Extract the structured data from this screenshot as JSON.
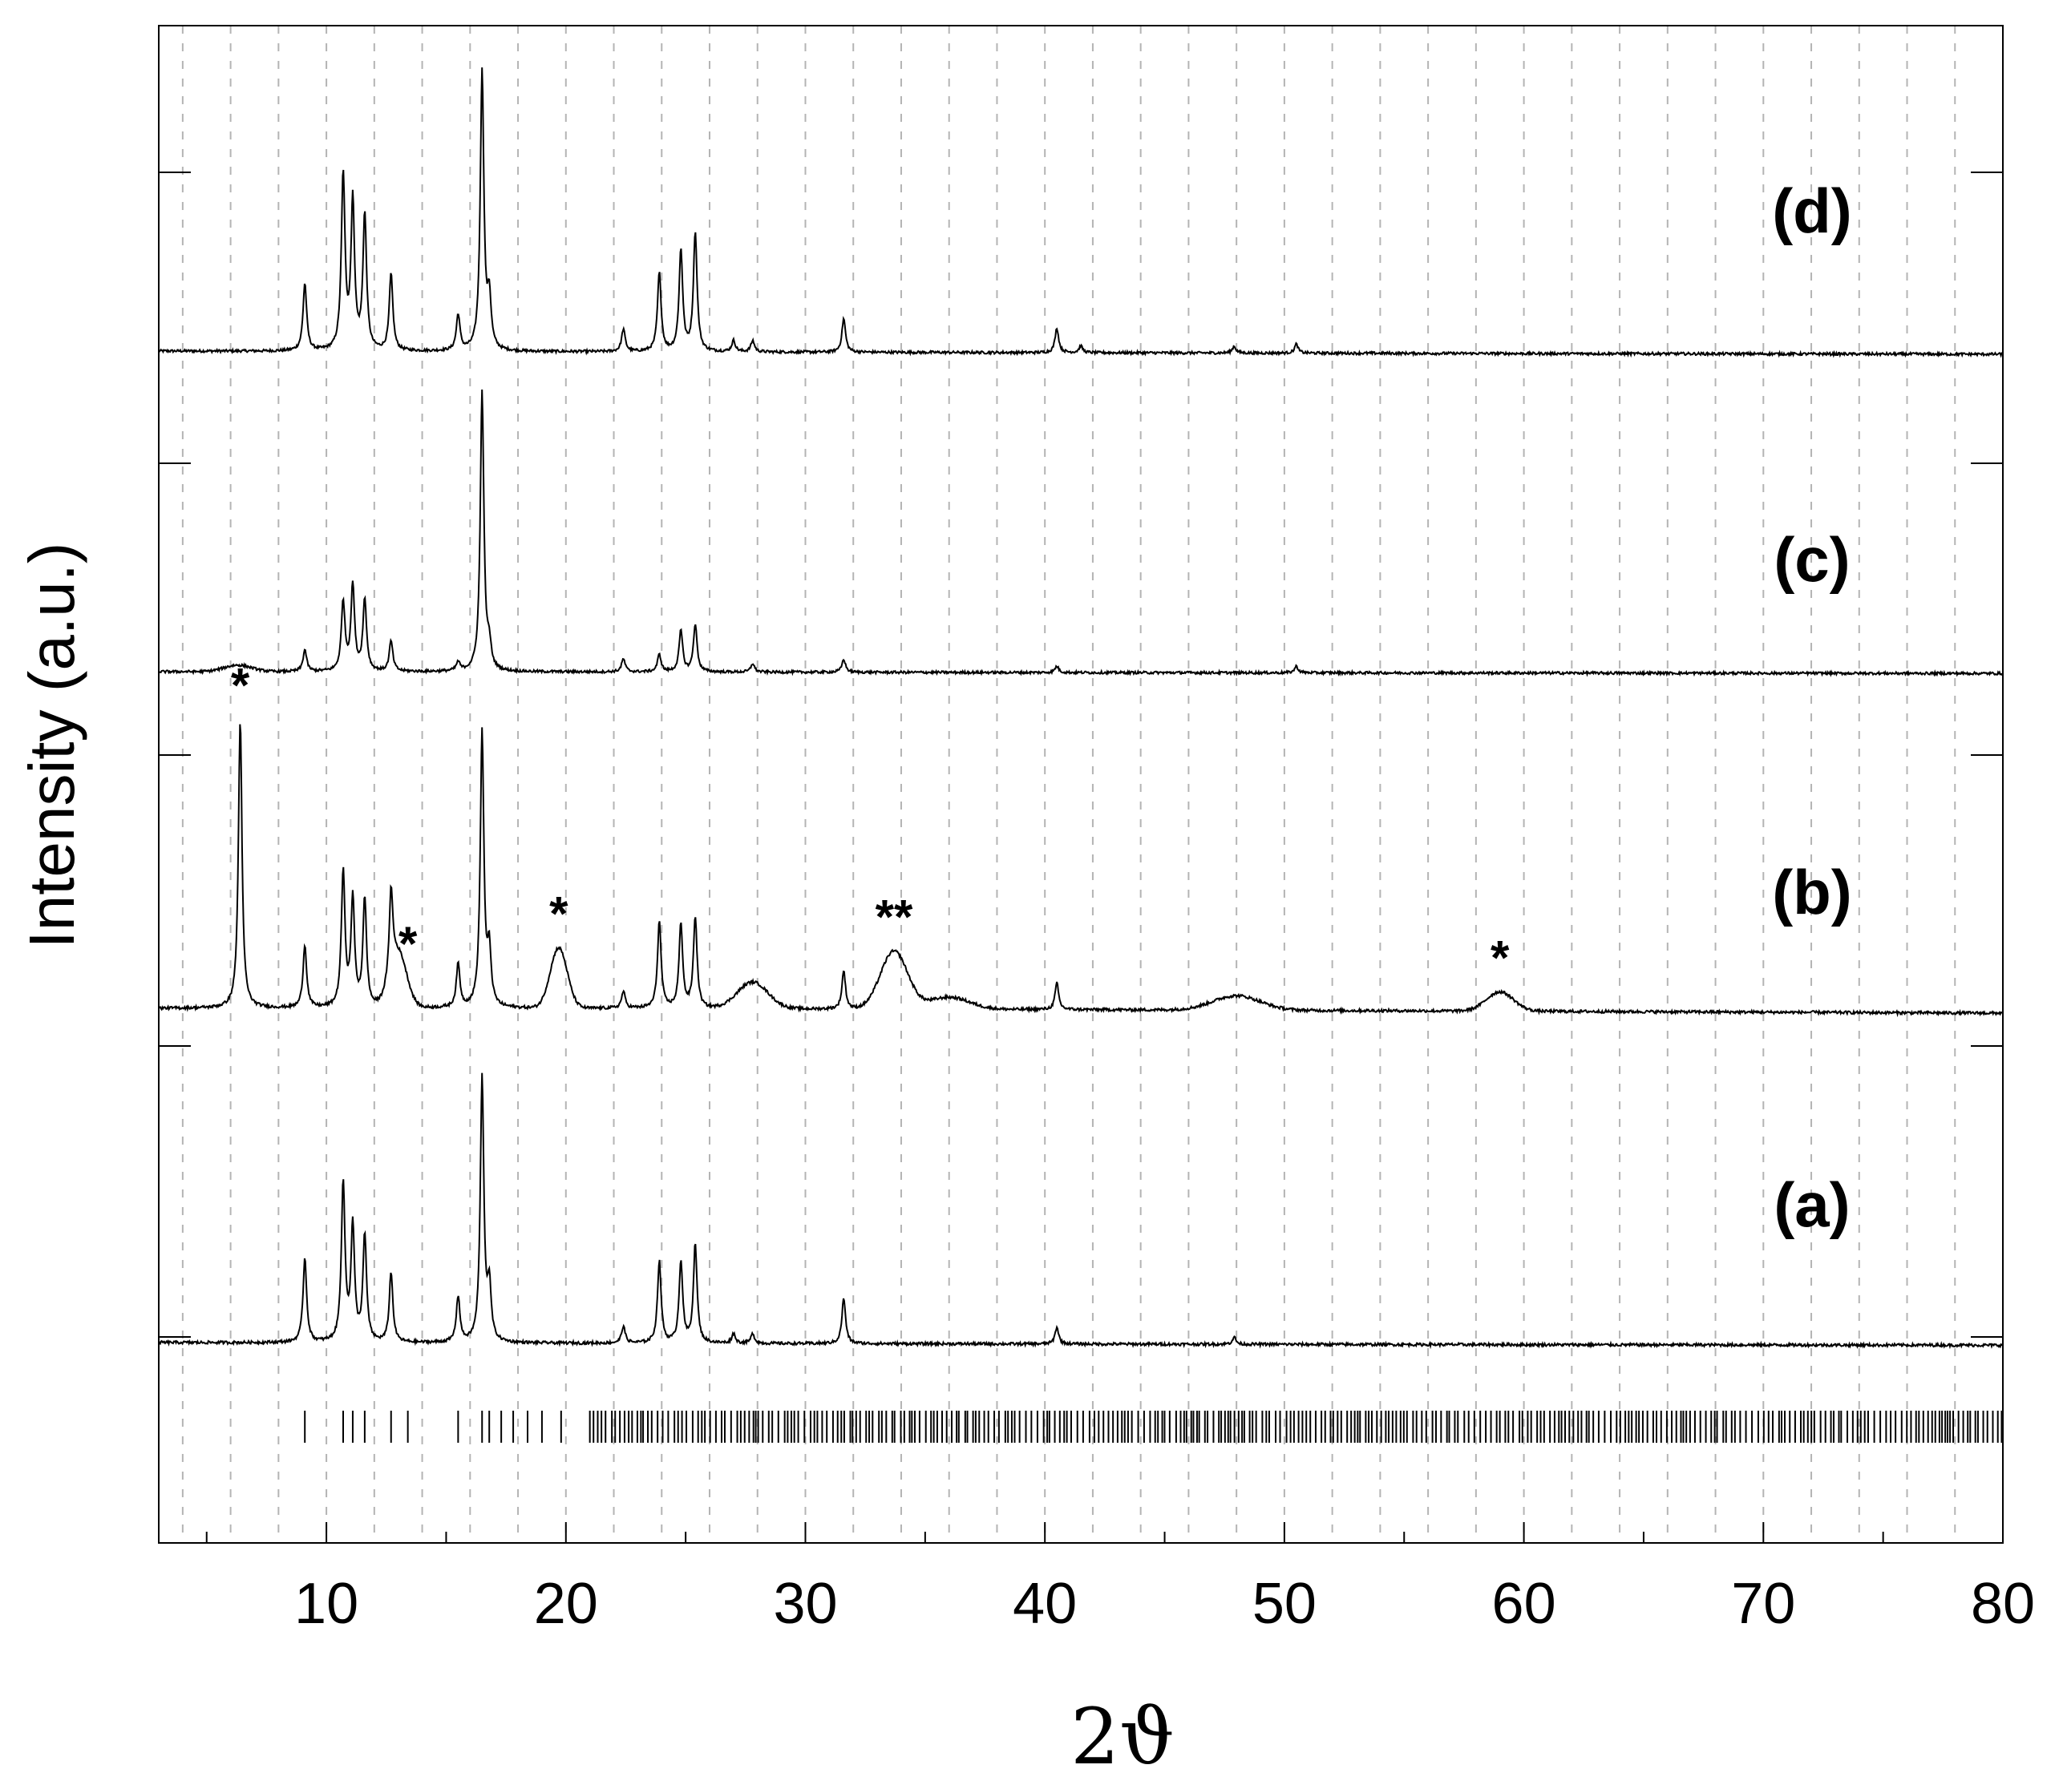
{
  "chart_data": {
    "type": "line",
    "xlabel": "2ϑ",
    "ylabel": "Intensity (a.u.)",
    "xlim": [
      3,
      80
    ],
    "x_ticks": [
      10,
      20,
      30,
      40,
      50,
      60,
      70,
      80
    ],
    "x_tick_labels": [
      "10",
      "20",
      "30",
      "40",
      "50",
      "60",
      "70",
      "80"
    ],
    "grid": "vertical dashed every 2",
    "series": [
      {
        "name": "(d)",
        "baseline": [
          [
            3,
            1.0
          ],
          [
            20,
            0.97
          ],
          [
            40,
            0.93
          ],
          [
            60,
            0.89
          ],
          [
            80,
            0.86
          ]
        ],
        "peaks": [
          [
            9.1,
            3.0
          ],
          [
            10.7,
            7.8
          ],
          [
            11.1,
            6.6
          ],
          [
            11.6,
            6.0
          ],
          [
            12.7,
            3.4
          ],
          [
            15.5,
            1.6
          ],
          [
            16.5,
            12.5
          ],
          [
            16.8,
            2.2
          ],
          [
            22.4,
            1.0
          ],
          [
            23.9,
            3.5
          ],
          [
            24.8,
            4.5
          ],
          [
            25.4,
            5.3
          ],
          [
            27.0,
            0.5
          ],
          [
            27.8,
            0.5
          ],
          [
            31.6,
            1.5
          ],
          [
            40.5,
            1.1
          ],
          [
            41.5,
            0.3
          ],
          [
            47.9,
            0.3
          ],
          [
            50.5,
            0.4
          ]
        ],
        "humps": []
      },
      {
        "name": "(c)",
        "baseline": [
          [
            3,
            1.0
          ],
          [
            20,
            0.99
          ],
          [
            40,
            0.96
          ],
          [
            60,
            0.94
          ],
          [
            80,
            0.92
          ]
        ],
        "peaks": [
          [
            9.1,
            1.0
          ],
          [
            10.7,
            3.2
          ],
          [
            11.1,
            4.0
          ],
          [
            11.6,
            3.3
          ],
          [
            12.7,
            1.4
          ],
          [
            15.5,
            0.4
          ],
          [
            16.5,
            13.0
          ],
          [
            16.8,
            1.0
          ],
          [
            22.4,
            0.6
          ],
          [
            23.9,
            0.8
          ],
          [
            24.8,
            1.9
          ],
          [
            25.4,
            2.2
          ],
          [
            27.8,
            0.4
          ],
          [
            31.6,
            0.6
          ],
          [
            40.5,
            0.3
          ],
          [
            50.5,
            0.3
          ]
        ],
        "humps": [
          [
            6.3,
            0.3,
            0.8
          ]
        ]
      },
      {
        "name": "(b)",
        "baseline": [
          [
            3,
            1.0
          ],
          [
            20,
            1.0
          ],
          [
            40,
            0.95
          ],
          [
            60,
            0.88
          ],
          [
            80,
            0.8
          ]
        ],
        "peaks": [
          [
            6.4,
            12.0
          ],
          [
            9.1,
            2.6
          ],
          [
            10.7,
            5.6
          ],
          [
            11.1,
            4.5
          ],
          [
            11.6,
            4.5
          ],
          [
            12.7,
            3.5
          ],
          [
            15.5,
            1.8
          ],
          [
            16.5,
            11.5
          ],
          [
            16.8,
            2.2
          ],
          [
            22.4,
            0.7
          ],
          [
            23.9,
            3.6
          ],
          [
            24.8,
            3.5
          ],
          [
            25.4,
            3.8
          ],
          [
            31.6,
            1.6
          ],
          [
            40.5,
            1.1
          ]
        ],
        "humps": [
          [
            13.0,
            2.2,
            0.5
          ],
          [
            19.7,
            2.5,
            0.5
          ],
          [
            27.8,
            1.1,
            0.9
          ],
          [
            33.7,
            2.4,
            0.8
          ],
          [
            36.0,
            0.5,
            1.2
          ],
          [
            48.0,
            0.6,
            1.4
          ],
          [
            59.0,
            0.8,
            0.8
          ]
        ]
      },
      {
        "name": "(a)",
        "baseline": [
          [
            3,
            1.0
          ],
          [
            20,
            0.97
          ],
          [
            40,
            0.94
          ],
          [
            60,
            0.91
          ],
          [
            80,
            0.89
          ]
        ],
        "peaks": [
          [
            9.1,
            3.5
          ],
          [
            10.7,
            6.6
          ],
          [
            11.1,
            4.8
          ],
          [
            11.6,
            4.4
          ],
          [
            12.7,
            2.9
          ],
          [
            15.5,
            1.9
          ],
          [
            16.5,
            11.0
          ],
          [
            16.8,
            2.2
          ],
          [
            22.4,
            0.7
          ],
          [
            23.9,
            3.4
          ],
          [
            24.8,
            3.4
          ],
          [
            25.4,
            4.1
          ],
          [
            27.0,
            0.4
          ],
          [
            27.8,
            0.4
          ],
          [
            31.6,
            1.9
          ],
          [
            40.5,
            0.7
          ],
          [
            47.9,
            0.3
          ]
        ],
        "humps": []
      }
    ],
    "annotations": [
      {
        "series": "(b)",
        "x": 6.4,
        "text": "*"
      },
      {
        "series": "(b)",
        "x": 13.4,
        "text": "*"
      },
      {
        "series": "(b)",
        "x": 19.7,
        "text": "*"
      },
      {
        "series": "(b)",
        "x": 33.7,
        "text": "**"
      },
      {
        "series": "(b)",
        "x": 59.0,
        "text": "*"
      }
    ],
    "reference_ticks": [
      9.1,
      10.7,
      11.1,
      11.6,
      12.7,
      13.4,
      15.5,
      16.5,
      16.8,
      17.3,
      17.8,
      18.4,
      19.0,
      19.8
    ]
  }
}
